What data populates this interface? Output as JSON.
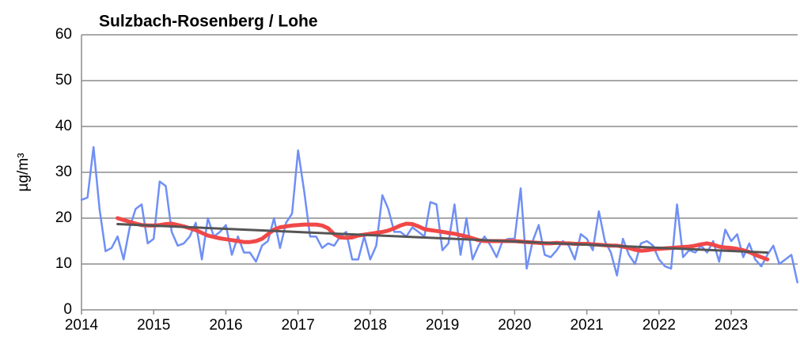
{
  "chart_data": {
    "type": "line",
    "title": "Sulzbach-Rosenberg / Lohe",
    "y_label": "µg/m³",
    "xlim": [
      2014,
      2023.92
    ],
    "xticks": [
      2014,
      2015,
      2016,
      2017,
      2018,
      2019,
      2020,
      2021,
      2022,
      2023
    ],
    "ylim": [
      0,
      60
    ],
    "yticks": [
      0,
      10,
      20,
      30,
      40,
      50,
      60
    ],
    "grid": true,
    "x": [
      2014,
      2014.083,
      2014.167,
      2014.25,
      2014.333,
      2014.417,
      2014.5,
      2014.583,
      2014.667,
      2014.75,
      2014.833,
      2014.917,
      2015,
      2015.083,
      2015.167,
      2015.25,
      2015.333,
      2015.417,
      2015.5,
      2015.583,
      2015.667,
      2015.75,
      2015.833,
      2015.917,
      2016,
      2016.083,
      2016.167,
      2016.25,
      2016.333,
      2016.417,
      2016.5,
      2016.583,
      2016.667,
      2016.75,
      2016.833,
      2016.917,
      2017,
      2017.083,
      2017.167,
      2017.25,
      2017.333,
      2017.417,
      2017.5,
      2017.583,
      2017.667,
      2017.75,
      2017.833,
      2017.917,
      2018,
      2018.083,
      2018.167,
      2018.25,
      2018.333,
      2018.417,
      2018.5,
      2018.583,
      2018.667,
      2018.75,
      2018.833,
      2018.917,
      2019,
      2019.083,
      2019.167,
      2019.25,
      2019.333,
      2019.417,
      2019.5,
      2019.583,
      2019.667,
      2019.75,
      2019.833,
      2019.917,
      2020,
      2020.083,
      2020.167,
      2020.25,
      2020.333,
      2020.417,
      2020.5,
      2020.583,
      2020.667,
      2020.75,
      2020.833,
      2020.917,
      2021,
      2021.083,
      2021.167,
      2021.25,
      2021.333,
      2021.417,
      2021.5,
      2021.583,
      2021.667,
      2021.75,
      2021.833,
      2021.917,
      2022,
      2022.083,
      2022.167,
      2022.25,
      2022.333,
      2022.417,
      2022.5,
      2022.583,
      2022.667,
      2022.75,
      2022.833,
      2022.917,
      2023,
      2023.083,
      2023.167,
      2023.25,
      2023.333,
      2023.417,
      2023.5,
      2023.583,
      2023.667,
      2023.75,
      2023.833,
      2023.917
    ],
    "series": [
      {
        "color": "#6f8ff5",
        "width": 2.5,
        "values": [
          24,
          24.5,
          35.5,
          22,
          12.8,
          13.5,
          16,
          11,
          18,
          22,
          23,
          14.5,
          15.5,
          28,
          27,
          17,
          14,
          14.5,
          16,
          19,
          11,
          20,
          16,
          17,
          18.5,
          12,
          16,
          12.5,
          12.5,
          10.5,
          14,
          15,
          20,
          13.5,
          19,
          21,
          34.8,
          26,
          16,
          16,
          13.5,
          14.5,
          14,
          16,
          17,
          11,
          11,
          16,
          11,
          14,
          25,
          22,
          17,
          17,
          16,
          18,
          17,
          16,
          23.5,
          23,
          13,
          14.5,
          23,
          12,
          20,
          11,
          14,
          16,
          14,
          11.5,
          15,
          15.5,
          15.5,
          26.5,
          9,
          15,
          18.5,
          12,
          11.5,
          13,
          15,
          14,
          11,
          16.5,
          15.5,
          13,
          21.5,
          15,
          12.5,
          7.5,
          15.5,
          12,
          10,
          14.5,
          15,
          14,
          11,
          9.5,
          9,
          23,
          11.5,
          13,
          12.5,
          14,
          12.5,
          15,
          10.5,
          17.5,
          15,
          16.5,
          11.5,
          14.5,
          11,
          9.5,
          12,
          14,
          10,
          11,
          12,
          6
        ]
      },
      {
        "color": "#f04848",
        "width": 5,
        "values": [
          null,
          null,
          null,
          null,
          null,
          null,
          20,
          19.6,
          19.2,
          18.8,
          18.5,
          18.4,
          18.4,
          18.5,
          18.7,
          18.8,
          18.5,
          18.2,
          17.8,
          17.4,
          16.8,
          16.2,
          15.9,
          15.6,
          15.4,
          15.2,
          15,
          14.8,
          14.8,
          15,
          15.5,
          16.5,
          17.5,
          18,
          18.2,
          18.4,
          18.5,
          18.6,
          18.6,
          18.6,
          18.4,
          17.8,
          16.5,
          15.8,
          15.7,
          15.8,
          16.2,
          16.4,
          16.6,
          16.8,
          17,
          17.3,
          17.8,
          18.4,
          18.8,
          18.7,
          18.2,
          17.6,
          17.4,
          17.2,
          17,
          16.8,
          16.6,
          16.3,
          16,
          15.6,
          15.2,
          15,
          15,
          15,
          15,
          15,
          15,
          14.9,
          14.8,
          14.7,
          14.6,
          14.5,
          14.5,
          14.6,
          14.5,
          14.5,
          14.4,
          14.4,
          14.4,
          14.3,
          14.2,
          14.1,
          14,
          14,
          13.8,
          13.5,
          13.1,
          12.9,
          13,
          13.2,
          13.3,
          13.4,
          13.5,
          13.6,
          13.7,
          13.8,
          14,
          14.3,
          14.5,
          14.2,
          13.8,
          13.6,
          13.5,
          13.3,
          13,
          12.6,
          12,
          11.5,
          11,
          null,
          null,
          null,
          null,
          null
        ]
      },
      {
        "color": "#555555",
        "width": 3,
        "x": [
          2014.5,
          2023.5
        ],
        "values": [
          18.7,
          12.5
        ]
      }
    ]
  }
}
